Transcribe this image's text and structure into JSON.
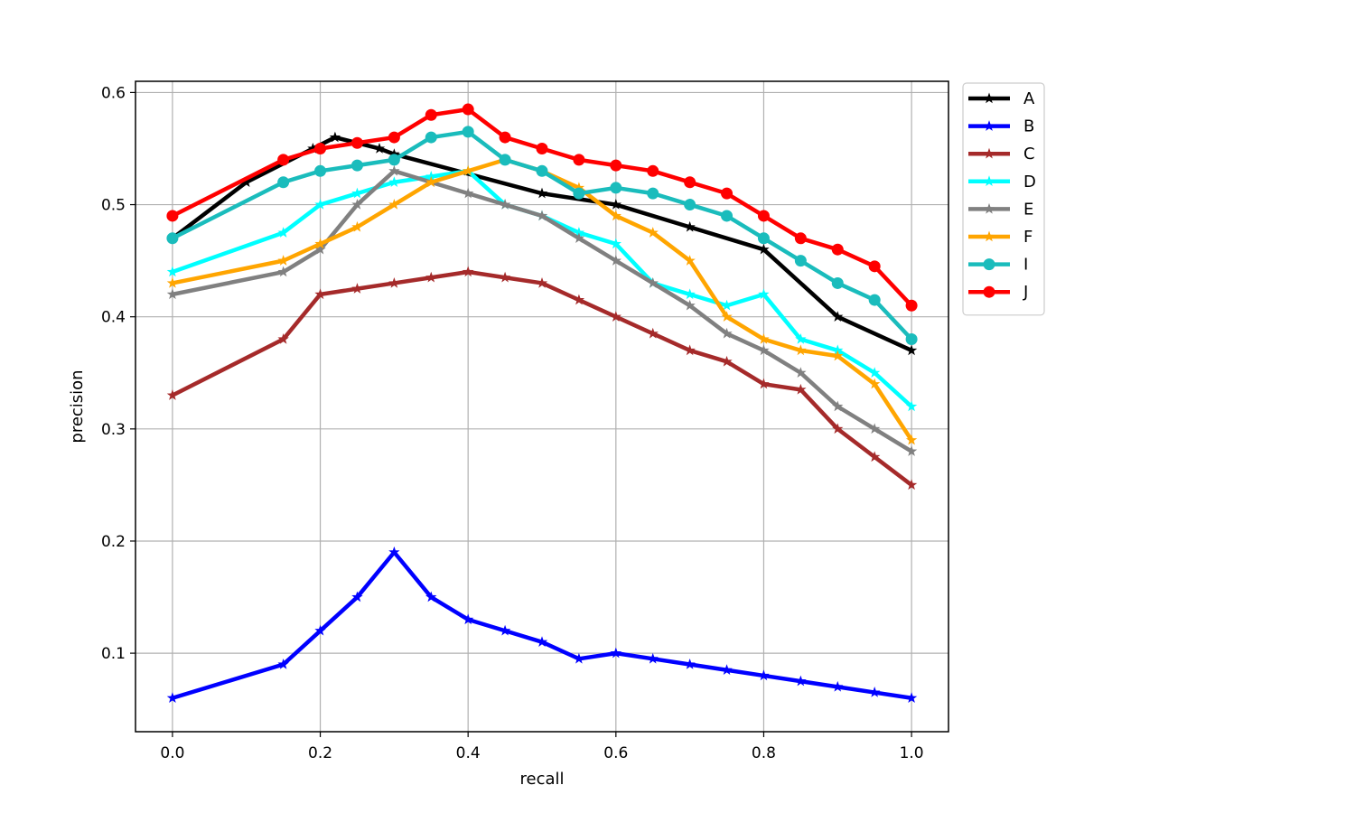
{
  "chart_data": {
    "type": "line",
    "title": "",
    "xlabel": "recall",
    "ylabel": "precision",
    "xlim": [
      -0.05,
      1.05
    ],
    "ylim": [
      0.03,
      0.61
    ],
    "xticks": [
      0.0,
      0.2,
      0.4,
      0.6,
      0.8,
      1.0
    ],
    "xtick_labels": [
      "0.0",
      "0.2",
      "0.4",
      "0.6",
      "0.8",
      "1.0"
    ],
    "yticks": [
      0.1,
      0.2,
      0.3,
      0.4,
      0.5,
      0.6
    ],
    "ytick_labels": [
      "0.1",
      "0.2",
      "0.3",
      "0.4",
      "0.5",
      "0.6"
    ],
    "grid": true,
    "legend_position": "outside-top-right",
    "series": [
      {
        "name": "A",
        "color": "#000000",
        "marker": "star",
        "x": [
          0.0,
          0.1,
          0.19,
          0.22,
          0.28,
          0.3,
          0.5,
          0.6,
          0.7,
          0.8,
          0.9,
          1.0
        ],
        "y": [
          0.47,
          0.52,
          0.55,
          0.56,
          0.55,
          0.545,
          0.51,
          0.5,
          0.48,
          0.46,
          0.4,
          0.37
        ]
      },
      {
        "name": "B",
        "color": "#0000ff",
        "marker": "star",
        "x": [
          0.0,
          0.15,
          0.2,
          0.25,
          0.3,
          0.35,
          0.4,
          0.45,
          0.5,
          0.55,
          0.6,
          0.65,
          0.7,
          0.75,
          0.8,
          0.85,
          0.9,
          0.95,
          1.0
        ],
        "y": [
          0.06,
          0.09,
          0.12,
          0.15,
          0.19,
          0.15,
          0.13,
          0.12,
          0.11,
          0.095,
          0.1,
          0.095,
          0.09,
          0.085,
          0.08,
          0.075,
          0.07,
          0.065,
          0.06
        ]
      },
      {
        "name": "C",
        "color": "#a52a2a",
        "marker": "star",
        "x": [
          0.0,
          0.15,
          0.2,
          0.25,
          0.3,
          0.35,
          0.4,
          0.45,
          0.5,
          0.55,
          0.6,
          0.65,
          0.7,
          0.75,
          0.8,
          0.85,
          0.9,
          0.95,
          1.0
        ],
        "y": [
          0.33,
          0.38,
          0.42,
          0.425,
          0.43,
          0.435,
          0.44,
          0.435,
          0.43,
          0.415,
          0.4,
          0.385,
          0.37,
          0.36,
          0.34,
          0.335,
          0.3,
          0.275,
          0.25
        ]
      },
      {
        "name": "D",
        "color": "#00ffff",
        "marker": "star",
        "x": [
          0.0,
          0.15,
          0.2,
          0.25,
          0.3,
          0.35,
          0.4,
          0.45,
          0.5,
          0.55,
          0.6,
          0.65,
          0.7,
          0.75,
          0.8,
          0.85,
          0.9,
          0.95,
          1.0
        ],
        "y": [
          0.44,
          0.475,
          0.5,
          0.51,
          0.52,
          0.525,
          0.53,
          0.5,
          0.49,
          0.475,
          0.465,
          0.43,
          0.42,
          0.41,
          0.42,
          0.38,
          0.37,
          0.35,
          0.32
        ]
      },
      {
        "name": "E",
        "color": "#808080",
        "marker": "star",
        "x": [
          0.0,
          0.15,
          0.2,
          0.25,
          0.3,
          0.35,
          0.4,
          0.45,
          0.5,
          0.55,
          0.6,
          0.65,
          0.7,
          0.75,
          0.8,
          0.85,
          0.9,
          0.95,
          1.0
        ],
        "y": [
          0.42,
          0.44,
          0.46,
          0.5,
          0.53,
          0.52,
          0.51,
          0.5,
          0.49,
          0.47,
          0.45,
          0.43,
          0.41,
          0.385,
          0.37,
          0.35,
          0.32,
          0.3,
          0.28
        ]
      },
      {
        "name": "F",
        "color": "#ffa500",
        "marker": "star",
        "x": [
          0.0,
          0.15,
          0.2,
          0.25,
          0.3,
          0.35,
          0.4,
          0.45,
          0.5,
          0.55,
          0.6,
          0.65,
          0.7,
          0.75,
          0.8,
          0.85,
          0.9,
          0.95,
          1.0
        ],
        "y": [
          0.43,
          0.45,
          0.465,
          0.48,
          0.5,
          0.52,
          0.53,
          0.54,
          0.53,
          0.515,
          0.49,
          0.475,
          0.45,
          0.4,
          0.38,
          0.37,
          0.365,
          0.34,
          0.29
        ]
      },
      {
        "name": "I",
        "color": "#1abcbc",
        "marker": "circle",
        "x": [
          0.0,
          0.15,
          0.2,
          0.25,
          0.3,
          0.35,
          0.4,
          0.45,
          0.5,
          0.55,
          0.6,
          0.65,
          0.7,
          0.75,
          0.8,
          0.85,
          0.9,
          0.95,
          1.0
        ],
        "y": [
          0.47,
          0.52,
          0.53,
          0.535,
          0.54,
          0.56,
          0.565,
          0.54,
          0.53,
          0.51,
          0.515,
          0.51,
          0.5,
          0.49,
          0.47,
          0.45,
          0.43,
          0.415,
          0.38
        ]
      },
      {
        "name": "J",
        "color": "#ff0000",
        "marker": "circle",
        "x": [
          0.0,
          0.15,
          0.2,
          0.25,
          0.3,
          0.35,
          0.4,
          0.45,
          0.5,
          0.55,
          0.6,
          0.65,
          0.7,
          0.75,
          0.8,
          0.85,
          0.9,
          0.95,
          1.0
        ],
        "y": [
          0.49,
          0.54,
          0.55,
          0.555,
          0.56,
          0.58,
          0.585,
          0.56,
          0.55,
          0.54,
          0.535,
          0.53,
          0.52,
          0.51,
          0.49,
          0.47,
          0.46,
          0.445,
          0.41
        ]
      }
    ]
  }
}
